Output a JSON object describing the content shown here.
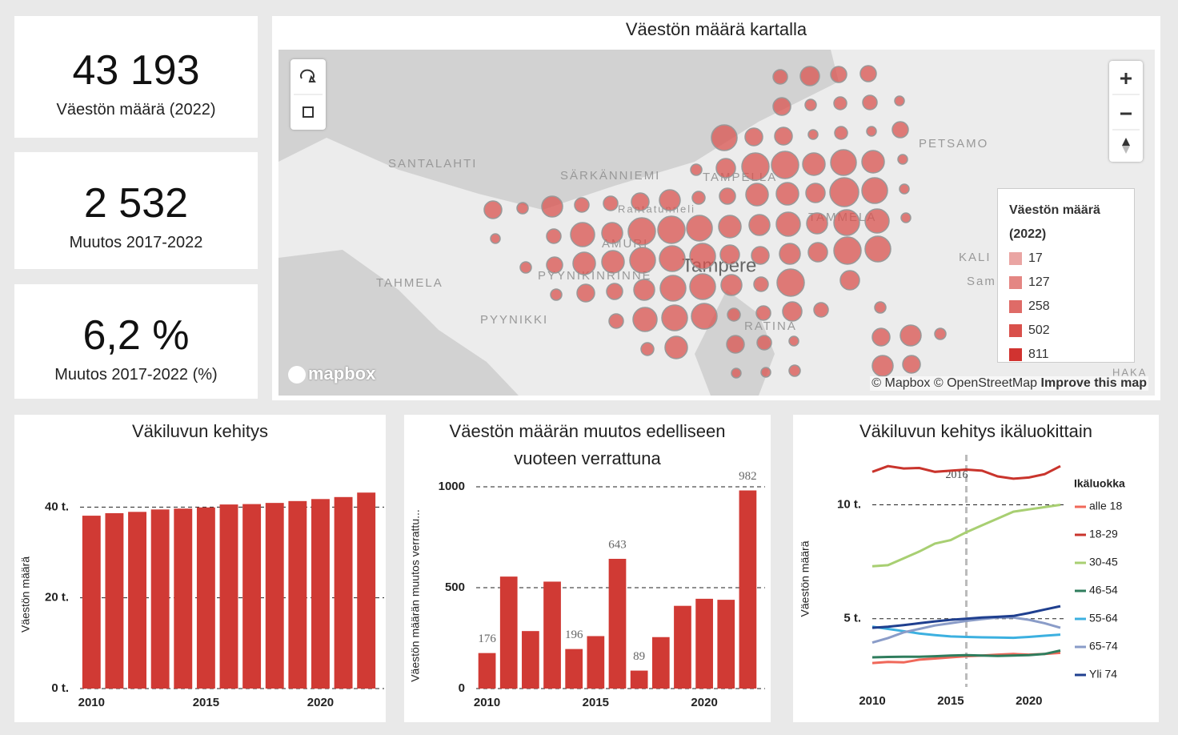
{
  "kpis": [
    {
      "value": "43 193",
      "label": "Väestön määrä (2022)"
    },
    {
      "value": "2 532",
      "label": "Muutos 2017-2022"
    },
    {
      "value": "6,2 %",
      "label": "Muutos 2017-2022 (%)"
    }
  ],
  "map": {
    "title": "Väestön määrä kartalla",
    "place_labels": [
      "SANTALAHTI",
      "SÄRKÄNNIEMI",
      "TAMPELLA",
      "TAMMELA",
      "PETSAMO",
      "TAHMELA",
      "PYYNIKINRINNE",
      "AMURI",
      "Tampere",
      "PYYNIKKI",
      "RATINA",
      "Rantatunneli",
      "KALI",
      "Sam",
      "HAKA"
    ],
    "legend_title": "Väestön määrä (2022)",
    "legend_items": [
      "17",
      "127",
      "258",
      "502",
      "811"
    ],
    "logo": "mapbox",
    "attribution": "© Mapbox © OpenStreetMap",
    "improve": "Improve this map"
  },
  "chart_data": [
    {
      "type": "bar",
      "title": "Väkiluvun kehitys",
      "y_label": "Väestön määrä",
      "x": [
        2010,
        2011,
        2012,
        2013,
        2014,
        2015,
        2016,
        2017,
        2018,
        2019,
        2020,
        2021,
        2022
      ],
      "values": [
        38.103,
        38.658,
        38.943,
        39.473,
        39.669,
        39.929,
        40.572,
        40.661,
        40.916,
        41.326,
        41.771,
        42.211,
        43.193
      ],
      "color": "#d03a34",
      "xlim": [
        2009.5,
        2022.5
      ],
      "xticks": [
        2010,
        2015,
        2020
      ],
      "ylim": [
        0,
        45
      ],
      "yticks": [
        {
          "value": 0,
          "label": "0 t."
        },
        {
          "value": 20,
          "label": "20 t."
        },
        {
          "value": 40,
          "label": "40 t."
        }
      ],
      "grid": true
    },
    {
      "type": "bar",
      "title": "Väestön määrän muutos edelliseen vuoteen verrattuna",
      "y_label": "Väestön määrän muutos verrattu...",
      "x": [
        2010,
        2011,
        2012,
        2013,
        2014,
        2015,
        2016,
        2017,
        2018,
        2019,
        2020,
        2021,
        2022
      ],
      "values": [
        176,
        555,
        285,
        530,
        196,
        260,
        643,
        89,
        255,
        410,
        445,
        440,
        982
      ],
      "value_labels": [
        "176",
        null,
        null,
        null,
        "196",
        null,
        "643",
        "89",
        null,
        null,
        null,
        null,
        "982"
      ],
      "color": "#d03a34",
      "xlim": [
        2009.5,
        2022.5
      ],
      "xticks": [
        2010,
        2015,
        2020
      ],
      "ylim": [
        0,
        1000
      ],
      "yticks": [
        0,
        500,
        1000
      ],
      "grid": true
    },
    {
      "type": "line",
      "title": "Väkiluvun kehitys ikäluokittain",
      "y_label": "Väestön määrä",
      "legend_title": "Ikäluokka",
      "x": [
        2010,
        2011,
        2012,
        2013,
        2014,
        2015,
        2016,
        2017,
        2018,
        2019,
        2020,
        2021,
        2022
      ],
      "series": [
        {
          "name": "alle 18",
          "color": "#f0685a",
          "values": [
            3.05,
            3.1,
            3.08,
            3.2,
            3.25,
            3.3,
            3.35,
            3.38,
            3.42,
            3.45,
            3.42,
            3.45,
            3.5
          ]
        },
        {
          "name": "18-29",
          "color": "#c9342c",
          "values": [
            11.45,
            11.7,
            11.6,
            11.62,
            11.45,
            11.5,
            11.55,
            11.5,
            11.25,
            11.15,
            11.2,
            11.35,
            11.7
          ]
        },
        {
          "name": "30-45",
          "color": "#a8cf72",
          "values": [
            7.3,
            7.35,
            7.65,
            7.95,
            8.3,
            8.45,
            8.8,
            9.1,
            9.4,
            9.7,
            9.8,
            9.9,
            10.0
          ]
        },
        {
          "name": "46-54",
          "color": "#2f7d5d",
          "values": [
            3.3,
            3.32,
            3.33,
            3.33,
            3.35,
            3.38,
            3.4,
            3.38,
            3.36,
            3.38,
            3.4,
            3.45,
            3.6
          ]
        },
        {
          "name": "55-64",
          "color": "#3cb0e0",
          "values": [
            4.65,
            4.55,
            4.45,
            4.35,
            4.28,
            4.22,
            4.2,
            4.18,
            4.17,
            4.16,
            4.2,
            4.25,
            4.3
          ]
        },
        {
          "name": "65-74",
          "color": "#8a9cc8",
          "values": [
            3.95,
            4.15,
            4.4,
            4.55,
            4.7,
            4.8,
            4.9,
            4.98,
            5.05,
            5.05,
            4.95,
            4.8,
            4.6
          ]
        },
        {
          "name": "Yli 74",
          "color": "#1f3f8f",
          "values": [
            4.6,
            4.65,
            4.72,
            4.8,
            4.88,
            4.95,
            5.0,
            5.05,
            5.08,
            5.12,
            5.25,
            5.4,
            5.55
          ]
        }
      ],
      "vline": 2016,
      "xlim": [
        2010,
        2022
      ],
      "xticks": [
        2010,
        2015,
        2020
      ],
      "ylim": [
        2,
        12.2
      ],
      "yticks": [
        {
          "value": 5,
          "label": "5 t."
        },
        {
          "value": 10,
          "label": "10 t."
        }
      ],
      "grid": true
    }
  ]
}
